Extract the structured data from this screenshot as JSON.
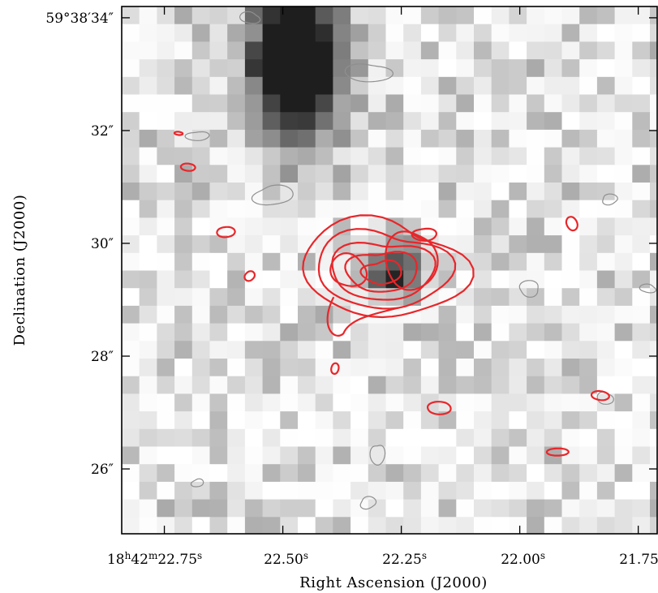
{
  "chart_data": {
    "type": "heatmap",
    "title": "",
    "xlabel": "Right Ascension (J2000)",
    "ylabel": "Declination (J2000)",
    "x_axis": {
      "units": "seconds of RA (18h42m + value)",
      "range": [
        22.84,
        21.71
      ],
      "inverted": true,
      "ticks": [
        {
          "value": 22.75,
          "label_main": "18",
          "sup1": "h",
          "mid": "42",
          "sup2": "m",
          "tail": "22.75",
          "sup3": "s"
        },
        {
          "value": 22.5,
          "label_main": "22.50",
          "sup3": "s"
        },
        {
          "value": 22.25,
          "label_main": "22.25",
          "sup3": "s"
        },
        {
          "value": 22.0,
          "label_main": "22.00",
          "sup3": "s"
        },
        {
          "value": 21.75,
          "label_main": "21.75",
          "sup3": "s"
        }
      ]
    },
    "y_axis": {
      "units": "arcsec (59°38' + value)",
      "range": [
        24.85,
        34.2
      ],
      "ticks": [
        {
          "value": 34,
          "label": "59°38′34″"
        },
        {
          "value": 32,
          "label": "32″"
        },
        {
          "value": 30,
          "label": "30″"
        },
        {
          "value": 28,
          "label": "28″"
        },
        {
          "value": 26,
          "label": "26″"
        }
      ]
    },
    "image": {
      "colormap": "grayscale (white = low, black = high)",
      "description": "pixelated optical/NIR image; bright extended source at top (RA≈22.45s, Dec 31.8–34.2), compact source near centre (RA≈22.27s, Dec≈29.4)",
      "bright_sources": [
        {
          "ra_s": 22.47,
          "dec_arcsec": 33.2,
          "intensity": 1.0
        },
        {
          "ra_s": 22.27,
          "dec_arcsec": 29.5,
          "intensity": 0.85
        }
      ]
    },
    "contours": {
      "red": {
        "color": "#e8262a",
        "levels": 5,
        "description": "radio/submm emission contours centred on RA≈22.27s, Dec≈29.5″ with small noise islands"
      },
      "grey": {
        "color": "#909090",
        "description": "faint grey contours of low-level features"
      }
    },
    "grid": false,
    "legend": "none"
  },
  "colors": {
    "red_contour": "#e8262a",
    "grey_contour": "#8f8f8f",
    "frame": "#000000"
  }
}
